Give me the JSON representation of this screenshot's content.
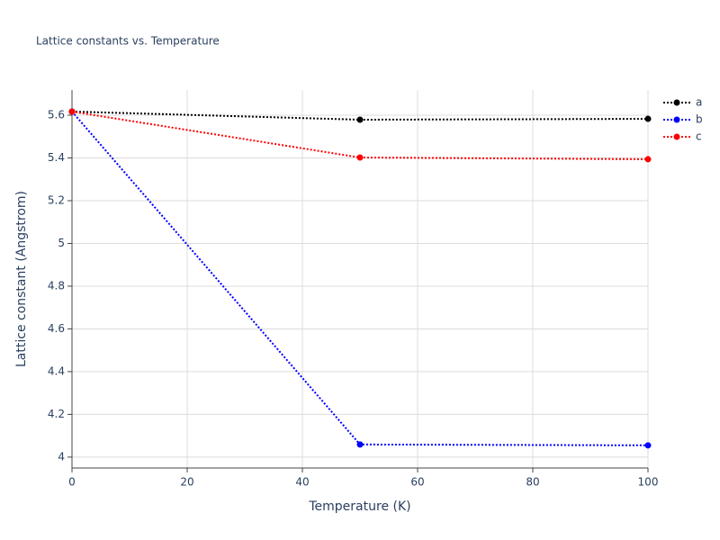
{
  "chart_data": {
    "type": "line",
    "title": "Lattice constants vs. Temperature",
    "x_label": "Temperature (K)",
    "y_label": "Lattice constant (Angstrom)",
    "x": [
      0,
      50,
      100
    ],
    "series": [
      {
        "name": "a",
        "color": "#000000",
        "values": [
          5.617,
          5.579,
          5.583
        ]
      },
      {
        "name": "b",
        "color": "#0000ff",
        "values": [
          5.617,
          4.059,
          4.055
        ]
      },
      {
        "name": "c",
        "color": "#ff0000",
        "values": [
          5.617,
          5.402,
          5.394
        ]
      }
    ],
    "xlim": [
      0,
      100
    ],
    "xticks": [
      0,
      20,
      40,
      60,
      80,
      100
    ],
    "ylim": [
      3.949,
      5.718
    ],
    "yticks": [
      4,
      4.2,
      4.4,
      4.6,
      4.8,
      5,
      5.2,
      5.4,
      5.6
    ],
    "grid": true,
    "legend": "top-right"
  }
}
